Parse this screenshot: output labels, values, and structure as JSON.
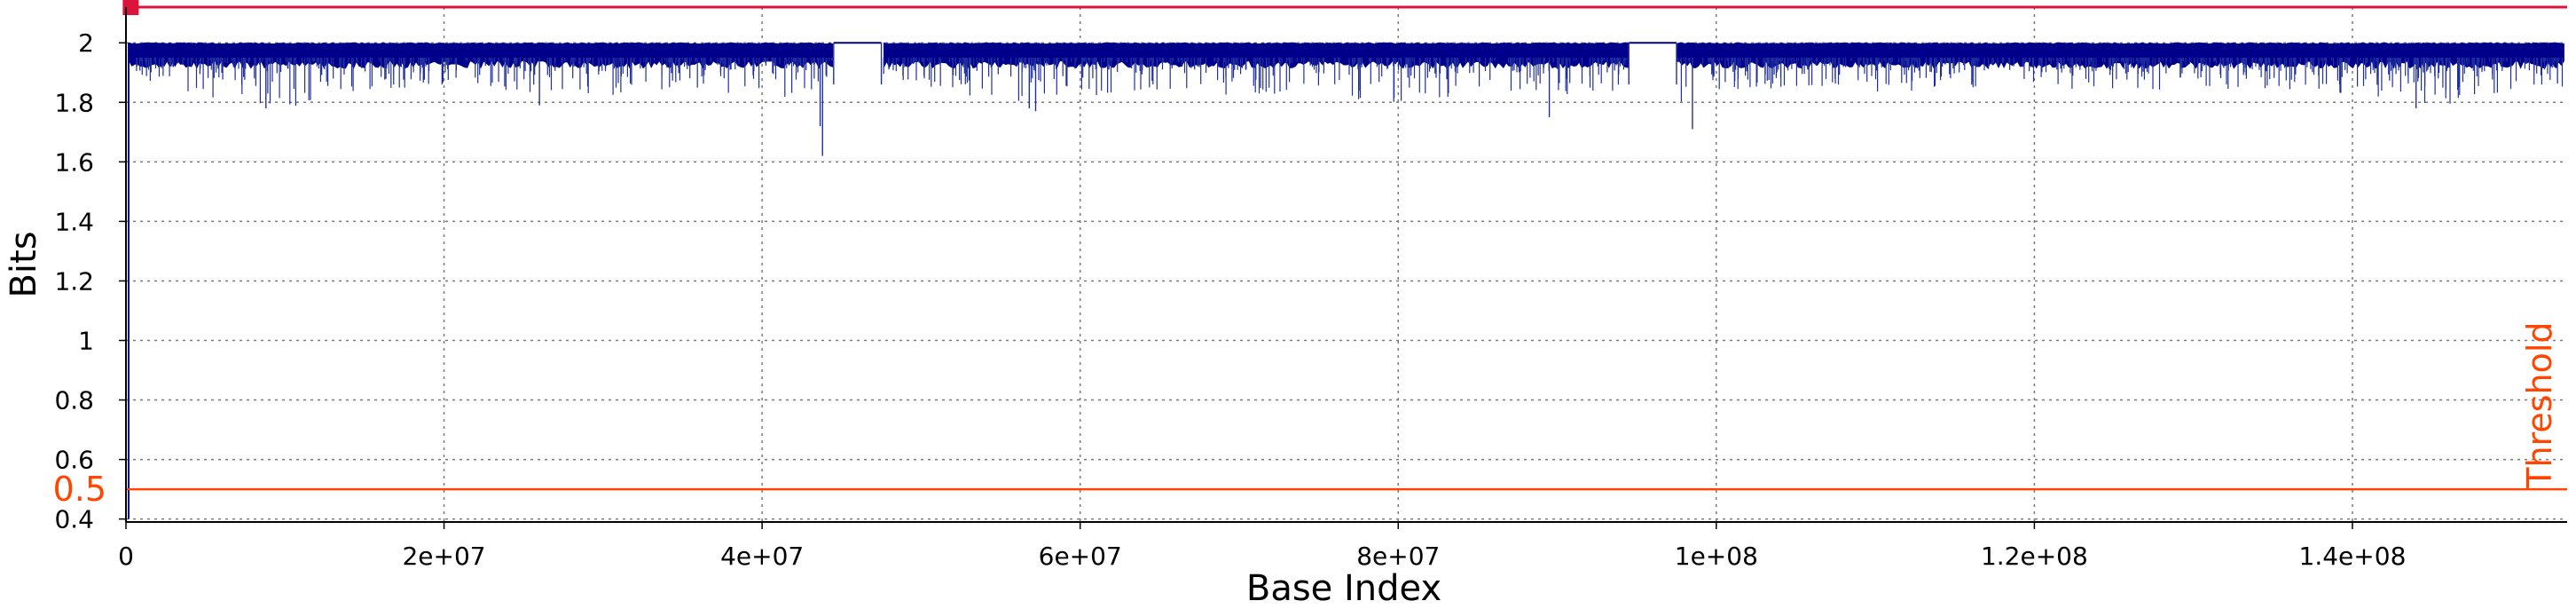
{
  "chart_data": {
    "type": "line",
    "xlabel": "Base Index",
    "ylabel": "Bits",
    "xlim": [
      0,
      153500000
    ],
    "ylim": [
      0.39,
      2.12
    ],
    "grid": true,
    "x_ticks": [
      0,
      20000000,
      40000000,
      60000000,
      80000000,
      100000000,
      120000000,
      140000000
    ],
    "x_tick_labels": [
      "0",
      "2e+07",
      "4e+07",
      "6e+07",
      "8e+07",
      "1e+08",
      "1.2e+08",
      "1.4e+08"
    ],
    "y_ticks": [
      0.4,
      0.6,
      0.8,
      1,
      1.2,
      1.4,
      1.6,
      1.8,
      2
    ],
    "y_tick_labels": [
      "0.4",
      "0.6",
      "0.8",
      "1",
      "1.2",
      "1.4",
      "1.6",
      "1.8",
      "2"
    ],
    "series": [
      {
        "color": "#00008b",
        "x": [
          0,
          200000,
          500000,
          1000000,
          5000000,
          10000000,
          15000000,
          20000000,
          25000000,
          30000000,
          35000000,
          40000000,
          43500000,
          43800000,
          44200000,
          44500000,
          47500000,
          50000000,
          55000000,
          60000000,
          65000000,
          70000000,
          75000000,
          80000000,
          85000000,
          90000000,
          94000000,
          94500000,
          97000000,
          97500000,
          100000000,
          105000000,
          110000000,
          115000000,
          120000000,
          125000000,
          130000000,
          135000000,
          140000000,
          145000000,
          150000000,
          153300000
        ],
        "mean": [
          0.4,
          1.96,
          1.96,
          1.96,
          1.96,
          1.96,
          1.96,
          1.96,
          1.96,
          1.96,
          1.96,
          1.96,
          1.96,
          1.62,
          1.96,
          2.0,
          1.96,
          1.96,
          1.96,
          1.96,
          1.96,
          1.96,
          1.96,
          1.96,
          1.96,
          1.96,
          1.96,
          2.0,
          2.0,
          1.96,
          1.96,
          1.96,
          1.96,
          1.96,
          1.96,
          1.96,
          1.96,
          1.96,
          1.96,
          1.96,
          1.96,
          1.96
        ],
        "min": [
          0.4,
          1.88,
          1.85,
          1.87,
          1.82,
          1.78,
          1.84,
          1.85,
          1.83,
          1.82,
          1.84,
          1.82,
          1.8,
          1.62,
          1.85,
          2.0,
          1.86,
          1.83,
          1.8,
          1.82,
          1.84,
          1.81,
          1.83,
          1.79,
          1.83,
          1.81,
          1.84,
          2.0,
          2.0,
          1.71,
          1.82,
          1.84,
          1.83,
          1.85,
          1.82,
          1.84,
          1.83,
          1.85,
          1.82,
          1.78,
          1.83,
          1.84
        ]
      }
    ],
    "top_line": {
      "y": 2.12,
      "color": "#dc143c",
      "marker_x": 300000
    },
    "threshold": {
      "y": 0.5,
      "value_label": "0.5",
      "label": "Threshold",
      "color": "#ff4500"
    },
    "gaps": [
      {
        "start": 44500000,
        "end": 47500000
      },
      {
        "start": 94500000,
        "end": 97500000
      }
    ]
  }
}
